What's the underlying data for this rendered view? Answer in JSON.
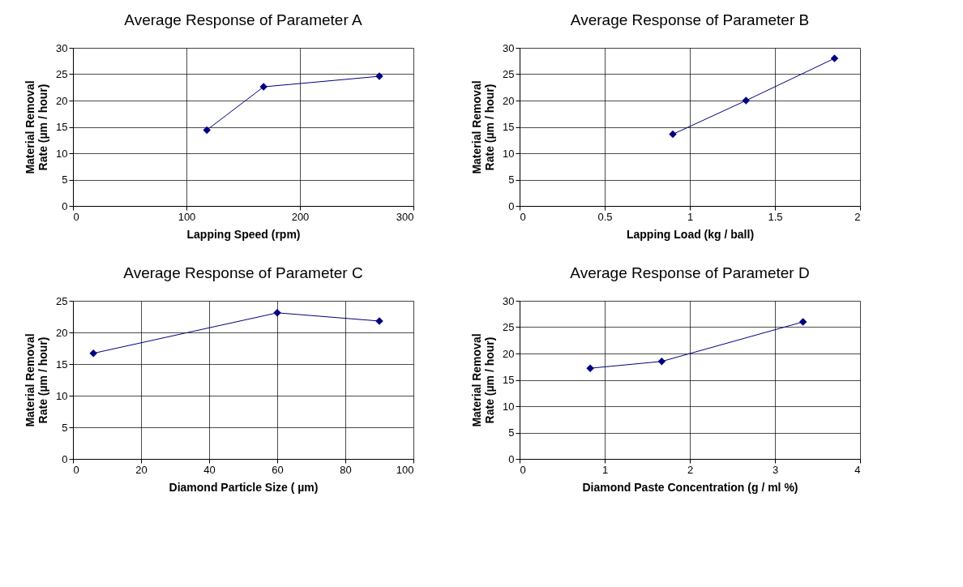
{
  "chart_data": [
    {
      "type": "line",
      "title": "Average Response of Parameter A",
      "xlabel": "Lapping Speed (rpm)",
      "ylabel": "Material Removal Rate (µm / hour)",
      "x": [
        118,
        168,
        270
      ],
      "series": [
        {
          "color": "#000080",
          "values": [
            14.4,
            22.6,
            24.6
          ]
        }
      ],
      "xlim": [
        0,
        300
      ],
      "xticks": [
        0,
        100,
        200,
        300
      ],
      "ylim": [
        0,
        30
      ],
      "yticks": [
        0,
        5,
        10,
        15,
        20,
        25,
        30
      ],
      "grid": true,
      "marker": "diamond",
      "line_style": "solid"
    },
    {
      "type": "line",
      "title": "Average Response of Parameter B",
      "xlabel": "Lapping Load (kg / ball)",
      "ylabel": "Material Removal Rate (µm / hour)",
      "x": [
        0.9,
        1.33,
        1.85
      ],
      "series": [
        {
          "color": "#000080",
          "values": [
            13.6,
            20,
            28
          ]
        }
      ],
      "xlim": [
        0,
        2
      ],
      "xticks": [
        0,
        0.5,
        1,
        1.5,
        2
      ],
      "ylim": [
        0,
        30
      ],
      "yticks": [
        0,
        5,
        10,
        15,
        20,
        25,
        30
      ],
      "grid": true,
      "marker": "diamond",
      "line_style": "solid"
    },
    {
      "type": "line",
      "title": "Average Response of Parameter C",
      "xlabel": "Diamond Particle Size  ( µm)",
      "ylabel": "Material Removal Rate (µm / hour)",
      "x": [
        6,
        60,
        90
      ],
      "series": [
        {
          "color": "#000080",
          "values": [
            16.7,
            23.1,
            21.8
          ]
        }
      ],
      "xlim": [
        0,
        100
      ],
      "xticks": [
        0,
        20,
        40,
        60,
        80,
        100
      ],
      "ylim": [
        0,
        25
      ],
      "yticks": [
        0,
        5,
        10,
        15,
        20,
        25
      ],
      "grid": true,
      "marker": "diamond",
      "line_style": "solid"
    },
    {
      "type": "line",
      "title": "Average Response of Parameter D",
      "xlabel": "Diamond Paste Concentration  (g / ml %)",
      "ylabel": "Material Removal Rate (µm / hour)",
      "x": [
        0.83,
        1.67,
        3.33
      ],
      "series": [
        {
          "color": "#000080",
          "values": [
            17.2,
            18.5,
            26
          ]
        }
      ],
      "xlim": [
        0,
        4
      ],
      "xticks": [
        0,
        1,
        2,
        3,
        4
      ],
      "ylim": [
        0,
        30
      ],
      "yticks": [
        0,
        5,
        10,
        15,
        20,
        25,
        30
      ],
      "grid": true,
      "marker": "diamond",
      "line_style": "solid"
    }
  ]
}
